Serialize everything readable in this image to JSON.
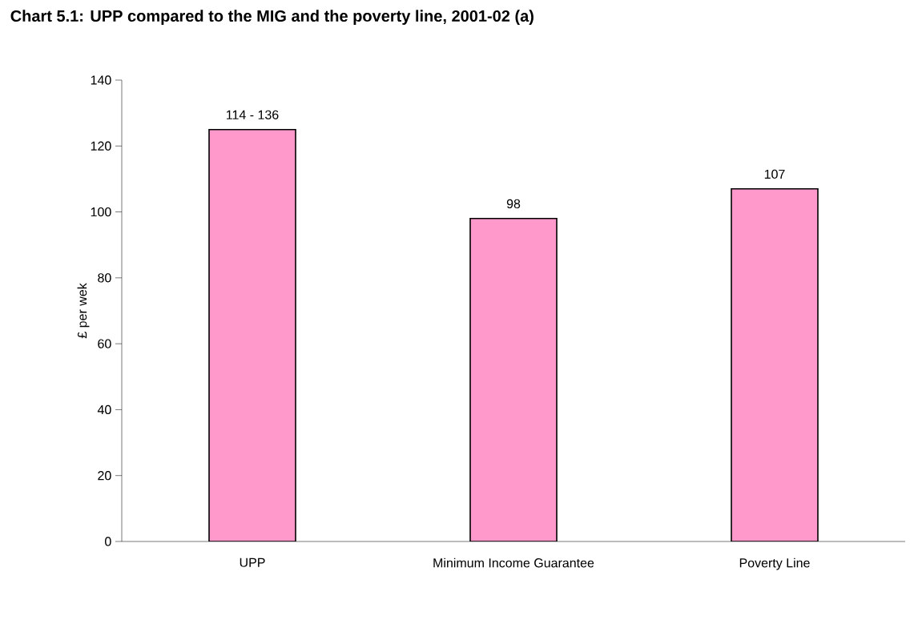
{
  "chart_data": {
    "type": "bar",
    "title": "Chart 5.1: UPP compared to the MIG and the poverty line, 2001-02 (a)",
    "ylabel": "£ per wek",
    "categories": [
      "UPP",
      "Minimum Income Guarantee",
      "Poverty Line"
    ],
    "values": [
      125,
      98,
      107
    ],
    "value_labels": [
      null,
      "98",
      "107"
    ],
    "annotations": [
      {
        "text": "114 - 136",
        "x": "UPP",
        "y": 125
      }
    ],
    "color": "#ff99cc",
    "ylim": [
      0,
      140
    ],
    "yticks": [
      0,
      20,
      40,
      60,
      80,
      100,
      120,
      140
    ],
    "grid": false
  }
}
